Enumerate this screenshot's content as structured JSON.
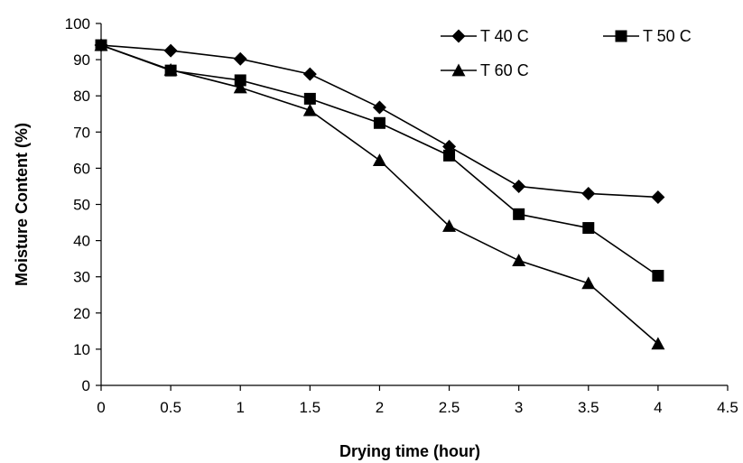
{
  "chart_data": {
    "type": "line",
    "title": "",
    "xlabel": "Drying time (hour)",
    "ylabel": "Moisture Content (%)",
    "xlim": [
      0,
      4.5
    ],
    "ylim": [
      0,
      100
    ],
    "x_ticks": [
      "0",
      "0.5",
      "1",
      "1.5",
      "2",
      "2.5",
      "3",
      "3.5",
      "4",
      "4.5"
    ],
    "y_ticks": [
      "0",
      "10",
      "20",
      "30",
      "40",
      "50",
      "60",
      "70",
      "80",
      "90",
      "100"
    ],
    "grid": false,
    "legend_position": "top-right",
    "x": [
      0,
      0.5,
      1,
      1.5,
      2,
      2.5,
      3,
      3.5,
      4
    ],
    "series": [
      {
        "name": "T 40 C",
        "marker": "diamond",
        "color": "#000000",
        "values": [
          94,
          92.5,
          90.2,
          86,
          76.8,
          66,
          55,
          53,
          52
        ]
      },
      {
        "name": "T 50 C",
        "marker": "square",
        "color": "#000000",
        "values": [
          94,
          87,
          84.3,
          79.2,
          72.5,
          63.5,
          47.3,
          43.5,
          30.3
        ]
      },
      {
        "name": "T 60 C",
        "marker": "triangle",
        "color": "#000000",
        "values": [
          94,
          87.2,
          82.3,
          76,
          62.2,
          44,
          34.5,
          28.2,
          11.5
        ]
      }
    ]
  }
}
